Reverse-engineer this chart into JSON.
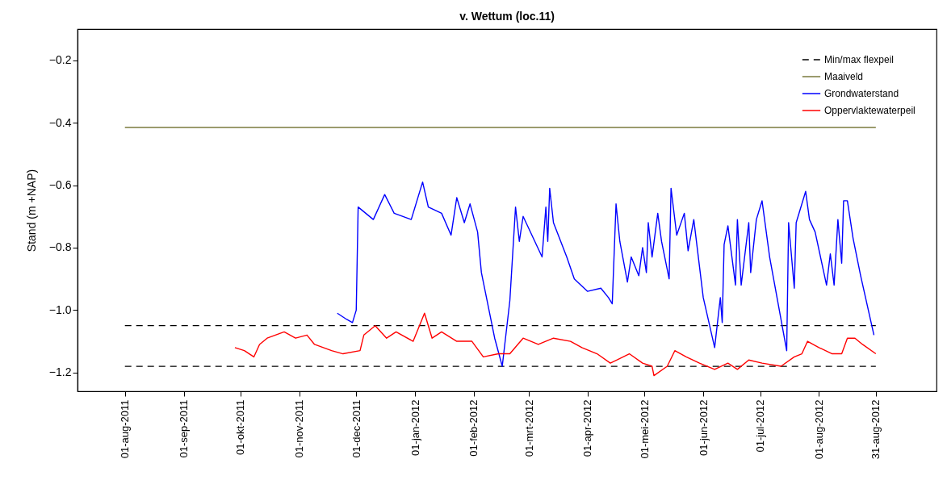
{
  "chart_data": {
    "type": "line",
    "title": "v. Wettum (loc.11)",
    "ylabel": "Stand (m +NAP)",
    "legend": "top right",
    "xlim": [
      "2011-07-07",
      "2012-10-02"
    ],
    "xticks": [
      {
        "value": "2011-08-01",
        "label": "01-aug-2011"
      },
      {
        "value": "2011-09-01",
        "label": "01-sep-2011"
      },
      {
        "value": "2011-10-01",
        "label": "01-okt-2011"
      },
      {
        "value": "2011-11-01",
        "label": "01-nov-2011"
      },
      {
        "value": "2011-12-01",
        "label": "01-dec-2011"
      },
      {
        "value": "2012-01-01",
        "label": "01-jan-2012"
      },
      {
        "value": "2012-02-01",
        "label": "01-feb-2012"
      },
      {
        "value": "2012-03-01",
        "label": "01-mrt-2012"
      },
      {
        "value": "2012-04-01",
        "label": "01-apr-2012"
      },
      {
        "value": "2012-05-01",
        "label": "01-mei-2012"
      },
      {
        "value": "2012-06-01",
        "label": "01-jun-2012"
      },
      {
        "value": "2012-07-01",
        "label": "01-jul-2012"
      },
      {
        "value": "2012-08-01",
        "label": "01-aug-2012"
      },
      {
        "value": "2012-08-31",
        "label": "31-aug-2012"
      }
    ],
    "ylim": [
      -1.26,
      -0.1
    ],
    "yticks": [
      {
        "value": -1.2,
        "label": "−1.2"
      },
      {
        "value": -1.0,
        "label": "−1.0"
      },
      {
        "value": -0.8,
        "label": "−0.8"
      },
      {
        "value": -0.6,
        "label": "−0.6"
      },
      {
        "value": -0.4,
        "label": "−0.4"
      },
      {
        "value": -0.2,
        "label": "−0.2"
      }
    ],
    "series": [
      {
        "name": "Min/max flexpeil",
        "color": "#000000",
        "line_style": "dashed",
        "x": [
          "2011-08-01",
          "2012-08-31"
        ],
        "values": [
          -1.05,
          -1.05
        ]
      },
      {
        "color": "#000000",
        "line_style": "dashed",
        "x": [
          "2011-08-01",
          "2012-08-31"
        ],
        "values": [
          -1.18,
          -1.18
        ]
      },
      {
        "name": "Maaiveld",
        "color": "#7a7a3c",
        "line_style": "solid",
        "x": [
          "2011-08-01",
          "2012-08-31"
        ],
        "values": [
          -0.415,
          -0.415
        ]
      },
      {
        "name": "Grondwaterstand",
        "color": "#0000ff",
        "line_style": "solid",
        "x": [
          "2011-11-21",
          "2011-11-26",
          "2011-11-29",
          "2011-12-01",
          "2011-12-02",
          "2011-12-10",
          "2011-12-16",
          "2011-12-21",
          "2011-12-30",
          "2012-01-05",
          "2012-01-08",
          "2012-01-15",
          "2012-01-20",
          "2012-01-23",
          "2012-01-27",
          "2012-01-30",
          "2012-02-03",
          "2012-02-05",
          "2012-02-12",
          "2012-02-16",
          "2012-02-20",
          "2012-02-23",
          "2012-02-25",
          "2012-02-27",
          "2012-03-08",
          "2012-03-10",
          "2012-03-11",
          "2012-03-12",
          "2012-03-14",
          "2012-03-21",
          "2012-03-25",
          "2012-04-01",
          "2012-04-08",
          "2012-04-12",
          "2012-04-14",
          "2012-04-16",
          "2012-04-18",
          "2012-04-22",
          "2012-04-24",
          "2012-04-28",
          "2012-04-30",
          "2012-05-02",
          "2012-05-03",
          "2012-05-05",
          "2012-05-08",
          "2012-05-10",
          "2012-05-14",
          "2012-05-15",
          "2012-05-18",
          "2012-05-22",
          "2012-05-24",
          "2012-05-27",
          "2012-06-01",
          "2012-06-07",
          "2012-06-10",
          "2012-06-11",
          "2012-06-12",
          "2012-06-14",
          "2012-06-18",
          "2012-06-19",
          "2012-06-21",
          "2012-06-25",
          "2012-06-26",
          "2012-06-29",
          "2012-07-02",
          "2012-07-06",
          "2012-07-15",
          "2012-07-16",
          "2012-07-19",
          "2012-07-20",
          "2012-07-22",
          "2012-07-25",
          "2012-07-27",
          "2012-07-30",
          "2012-08-05",
          "2012-08-07",
          "2012-08-09",
          "2012-08-11",
          "2012-08-13",
          "2012-08-14",
          "2012-08-16",
          "2012-08-19",
          "2012-08-23",
          "2012-08-30"
        ],
        "values": [
          -1.01,
          -1.03,
          -1.04,
          -1.0,
          -0.67,
          -0.71,
          -0.63,
          -0.69,
          -0.71,
          -0.59,
          -0.67,
          -0.69,
          -0.76,
          -0.64,
          -0.72,
          -0.66,
          -0.75,
          -0.88,
          -1.09,
          -1.18,
          -0.97,
          -0.67,
          -0.78,
          -0.7,
          -0.83,
          -0.67,
          -0.78,
          -0.61,
          -0.72,
          -0.83,
          -0.9,
          -0.94,
          -0.93,
          -0.96,
          -0.98,
          -0.66,
          -0.78,
          -0.91,
          -0.83,
          -0.89,
          -0.8,
          -0.88,
          -0.72,
          -0.83,
          -0.69,
          -0.78,
          -0.9,
          -0.61,
          -0.76,
          -0.69,
          -0.81,
          -0.71,
          -0.96,
          -1.12,
          -0.96,
          -1.04,
          -0.79,
          -0.73,
          -0.92,
          -0.71,
          -0.92,
          -0.72,
          -0.88,
          -0.71,
          -0.65,
          -0.83,
          -1.13,
          -0.72,
          -0.93,
          -0.72,
          -0.68,
          -0.62,
          -0.71,
          -0.75,
          -0.92,
          -0.82,
          -0.92,
          -0.71,
          -0.85,
          -0.65,
          -0.65,
          -0.77,
          -0.89,
          -1.08
        ]
      },
      {
        "name": "Oppervlaktewaterpeil",
        "color": "#ff0000",
        "line_style": "solid",
        "x": [
          "2011-09-28",
          "2011-10-03",
          "2011-10-08",
          "2011-10-11",
          "2011-10-15",
          "2011-10-24",
          "2011-10-30",
          "2011-11-05",
          "2011-11-09",
          "2011-11-18",
          "2011-11-24",
          "2011-12-03",
          "2011-12-05",
          "2011-12-11",
          "2011-12-17",
          "2011-12-22",
          "2011-12-31",
          "2012-01-06",
          "2012-01-10",
          "2012-01-15",
          "2012-01-23",
          "2012-01-31",
          "2012-02-06",
          "2012-02-14",
          "2012-02-20",
          "2012-02-27",
          "2012-03-06",
          "2012-03-14",
          "2012-03-23",
          "2012-03-29",
          "2012-04-06",
          "2012-04-13",
          "2012-04-23",
          "2012-04-30",
          "2012-05-05",
          "2012-05-06",
          "2012-05-13",
          "2012-05-17",
          "2012-05-23",
          "2012-05-30",
          "2012-06-07",
          "2012-06-14",
          "2012-06-19",
          "2012-06-25",
          "2012-07-02",
          "2012-07-12",
          "2012-07-19",
          "2012-07-23",
          "2012-07-26",
          "2012-08-01",
          "2012-08-08",
          "2012-08-13",
          "2012-08-16",
          "2012-08-20",
          "2012-08-24",
          "2012-08-31"
        ],
        "values": [
          -1.12,
          -1.13,
          -1.15,
          -1.11,
          -1.09,
          -1.07,
          -1.09,
          -1.08,
          -1.11,
          -1.13,
          -1.14,
          -1.13,
          -1.08,
          -1.05,
          -1.09,
          -1.07,
          -1.1,
          -1.01,
          -1.09,
          -1.07,
          -1.1,
          -1.1,
          -1.15,
          -1.14,
          -1.14,
          -1.09,
          -1.11,
          -1.09,
          -1.1,
          -1.12,
          -1.14,
          -1.17,
          -1.14,
          -1.17,
          -1.18,
          -1.21,
          -1.18,
          -1.13,
          -1.15,
          -1.17,
          -1.19,
          -1.17,
          -1.19,
          -1.16,
          -1.17,
          -1.18,
          -1.15,
          -1.14,
          -1.1,
          -1.12,
          -1.14,
          -1.14,
          -1.09,
          -1.09,
          -1.11,
          -1.14
        ]
      }
    ]
  }
}
